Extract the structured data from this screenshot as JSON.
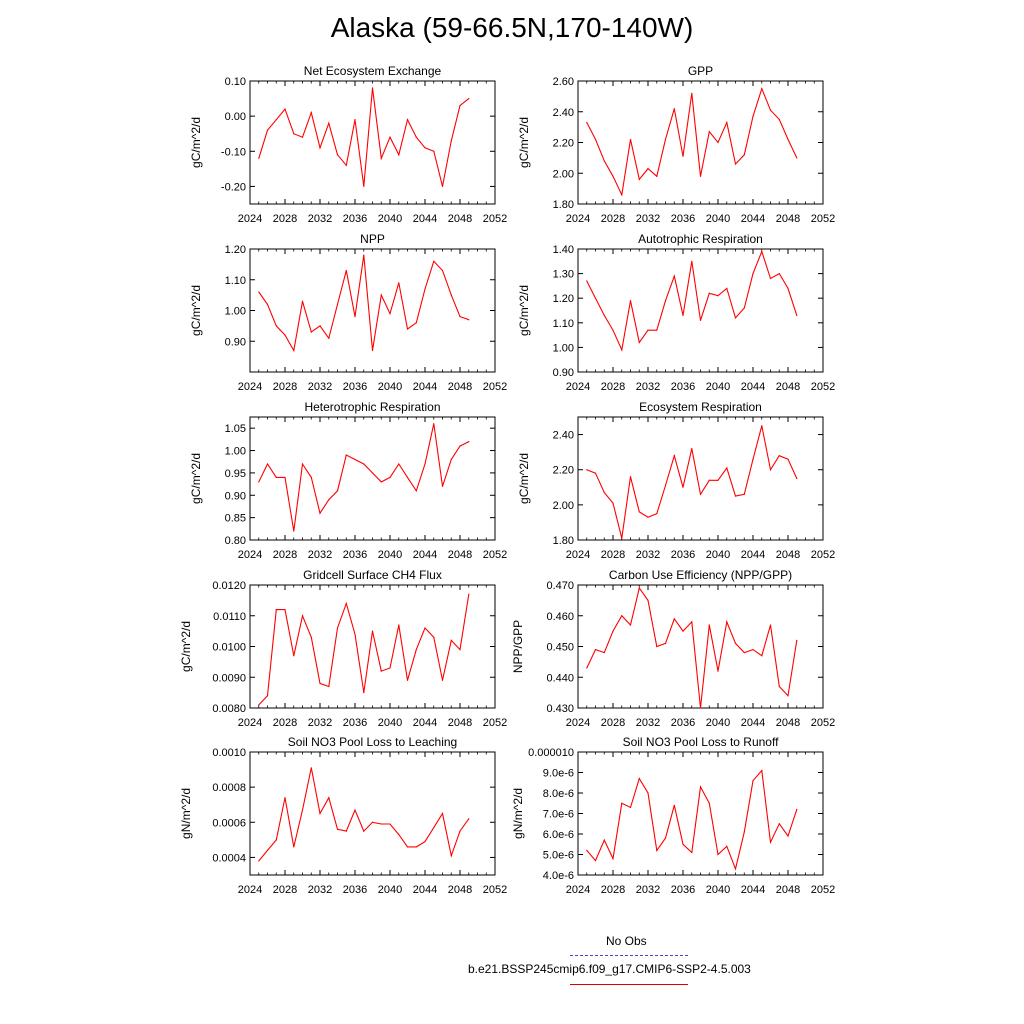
{
  "title": "Alaska (59-66.5N,170-140W)",
  "legend": {
    "obs_label": "No Obs",
    "obs_color": "#4444cc",
    "model_label": "b.e21.BSSP245cmip6.f09_g17.CMIP6-SSP2-4.5.003",
    "model_color": "#dd0000"
  },
  "chart_data": [
    {
      "type": "line",
      "title": "Net Ecosystem Exchange",
      "ylabel": "gC/m^2/d",
      "xlim": [
        2024,
        2052
      ],
      "xticks": [
        2024,
        2028,
        2032,
        2036,
        2040,
        2044,
        2048,
        2052
      ],
      "ylim": [
        -0.25,
        0.1
      ],
      "yticks": [
        -0.2,
        -0.1,
        0.0,
        0.1
      ],
      "ytick_labels": [
        "-0.20",
        "-0.10",
        "0.00",
        "0.10"
      ],
      "series": [
        {
          "color": "#ff0000",
          "x": [
            2025,
            2026,
            2027,
            2028,
            2029,
            2030,
            2031,
            2032,
            2033,
            2034,
            2035,
            2036,
            2037,
            2038,
            2039,
            2040,
            2041,
            2042,
            2043,
            2044,
            2045,
            2046,
            2047,
            2048,
            2049
          ],
          "values": [
            -0.12,
            -0.04,
            -0.01,
            0.02,
            -0.05,
            -0.06,
            0.01,
            -0.09,
            -0.02,
            -0.11,
            -0.14,
            -0.01,
            -0.2,
            0.08,
            -0.12,
            -0.06,
            -0.11,
            -0.01,
            -0.06,
            -0.09,
            -0.1,
            -0.2,
            -0.07,
            0.03,
            0.05
          ]
        }
      ]
    },
    {
      "type": "line",
      "title": "GPP",
      "ylabel": "gC/m^2/d",
      "xlim": [
        2024,
        2052
      ],
      "xticks": [
        2024,
        2028,
        2032,
        2036,
        2040,
        2044,
        2048,
        2052
      ],
      "ylim": [
        1.8,
        2.6
      ],
      "yticks": [
        1.8,
        2.0,
        2.2,
        2.4,
        2.6
      ],
      "ytick_labels": [
        "1.80",
        "2.00",
        "2.20",
        "2.40",
        "2.60"
      ],
      "series": [
        {
          "color": "#ff0000",
          "x": [
            2025,
            2026,
            2027,
            2028,
            2029,
            2030,
            2031,
            2032,
            2033,
            2034,
            2035,
            2036,
            2037,
            2038,
            2039,
            2040,
            2041,
            2042,
            2043,
            2044,
            2045,
            2046,
            2047,
            2048,
            2049
          ],
          "values": [
            2.33,
            2.22,
            2.08,
            1.98,
            1.86,
            2.22,
            1.96,
            2.03,
            1.98,
            2.22,
            2.42,
            2.11,
            2.52,
            1.98,
            2.27,
            2.2,
            2.33,
            2.06,
            2.12,
            2.37,
            2.55,
            2.41,
            2.35,
            2.22,
            2.1
          ]
        }
      ]
    },
    {
      "type": "line",
      "title": "NPP",
      "ylabel": "gC/m^2/d",
      "xlim": [
        2024,
        2052
      ],
      "xticks": [
        2024,
        2028,
        2032,
        2036,
        2040,
        2044,
        2048,
        2052
      ],
      "ylim": [
        0.8,
        1.2
      ],
      "yticks": [
        0.9,
        1.0,
        1.1,
        1.2
      ],
      "ytick_labels": [
        "0.90",
        "1.00",
        "1.10",
        "1.20"
      ],
      "series": [
        {
          "color": "#ff0000",
          "x": [
            2025,
            2026,
            2027,
            2028,
            2029,
            2030,
            2031,
            2032,
            2033,
            2034,
            2035,
            2036,
            2037,
            2038,
            2039,
            2040,
            2041,
            2042,
            2043,
            2044,
            2045,
            2046,
            2047,
            2048,
            2049
          ],
          "values": [
            1.06,
            1.02,
            0.95,
            0.92,
            0.87,
            1.03,
            0.93,
            0.95,
            0.91,
            1.02,
            1.13,
            0.98,
            1.18,
            0.87,
            1.05,
            0.99,
            1.09,
            0.94,
            0.96,
            1.07,
            1.16,
            1.13,
            1.05,
            0.98,
            0.97
          ]
        }
      ]
    },
    {
      "type": "line",
      "title": "Autotrophic Respiration",
      "ylabel": "gC/m^2/d",
      "xlim": [
        2024,
        2052
      ],
      "xticks": [
        2024,
        2028,
        2032,
        2036,
        2040,
        2044,
        2048,
        2052
      ],
      "ylim": [
        0.9,
        1.4
      ],
      "yticks": [
        0.9,
        1.0,
        1.1,
        1.2,
        1.3,
        1.4
      ],
      "ytick_labels": [
        "0.90",
        "1.00",
        "1.10",
        "1.20",
        "1.30",
        "1.40"
      ],
      "series": [
        {
          "color": "#ff0000",
          "x": [
            2025,
            2026,
            2027,
            2028,
            2029,
            2030,
            2031,
            2032,
            2033,
            2034,
            2035,
            2036,
            2037,
            2038,
            2039,
            2040,
            2041,
            2042,
            2043,
            2044,
            2045,
            2046,
            2047,
            2048,
            2049
          ],
          "values": [
            1.27,
            1.2,
            1.13,
            1.07,
            0.99,
            1.19,
            1.02,
            1.07,
            1.07,
            1.19,
            1.29,
            1.13,
            1.35,
            1.11,
            1.22,
            1.21,
            1.24,
            1.12,
            1.16,
            1.3,
            1.39,
            1.28,
            1.3,
            1.24,
            1.13
          ]
        }
      ]
    },
    {
      "type": "line",
      "title": "Heterotrophic Respiration",
      "ylabel": "gC/m^2/d",
      "xlim": [
        2024,
        2052
      ],
      "xticks": [
        2024,
        2028,
        2032,
        2036,
        2040,
        2044,
        2048,
        2052
      ],
      "ylim": [
        0.8,
        1.075
      ],
      "yticks": [
        0.8,
        0.85,
        0.9,
        0.95,
        1.0,
        1.05
      ],
      "ytick_labels": [
        "0.80",
        "0.85",
        "0.90",
        "0.95",
        "1.00",
        "1.05"
      ],
      "series": [
        {
          "color": "#ff0000",
          "x": [
            2025,
            2026,
            2027,
            2028,
            2029,
            2030,
            2031,
            2032,
            2033,
            2034,
            2035,
            2036,
            2037,
            2038,
            2039,
            2040,
            2041,
            2042,
            2043,
            2044,
            2045,
            2046,
            2047,
            2048,
            2049
          ],
          "values": [
            0.93,
            0.97,
            0.94,
            0.94,
            0.82,
            0.97,
            0.94,
            0.86,
            0.89,
            0.91,
            0.99,
            0.98,
            0.97,
            0.95,
            0.93,
            0.94,
            0.97,
            0.94,
            0.91,
            0.97,
            1.06,
            0.92,
            0.98,
            1.01,
            1.02
          ]
        }
      ]
    },
    {
      "type": "line",
      "title": "Ecosystem Respiration",
      "ylabel": "gC/m^2/d",
      "xlim": [
        2024,
        2052
      ],
      "xticks": [
        2024,
        2028,
        2032,
        2036,
        2040,
        2044,
        2048,
        2052
      ],
      "ylim": [
        1.8,
        2.5
      ],
      "yticks": [
        1.8,
        2.0,
        2.2,
        2.4
      ],
      "ytick_labels": [
        "1.80",
        "2.00",
        "2.20",
        "2.40"
      ],
      "series": [
        {
          "color": "#ff0000",
          "x": [
            2025,
            2026,
            2027,
            2028,
            2029,
            2030,
            2031,
            2032,
            2033,
            2034,
            2035,
            2036,
            2037,
            2038,
            2039,
            2040,
            2041,
            2042,
            2043,
            2044,
            2045,
            2046,
            2047,
            2048,
            2049
          ],
          "values": [
            2.2,
            2.18,
            2.07,
            2.01,
            1.81,
            2.16,
            1.96,
            1.93,
            1.95,
            2.11,
            2.28,
            2.1,
            2.32,
            2.06,
            2.14,
            2.14,
            2.21,
            2.05,
            2.06,
            2.26,
            2.45,
            2.2,
            2.28,
            2.26,
            2.15
          ]
        }
      ]
    },
    {
      "type": "line",
      "title": "Gridcell Surface CH4 Flux",
      "ylabel": "gC/m^2/d",
      "xlim": [
        2024,
        2052
      ],
      "xticks": [
        2024,
        2028,
        2032,
        2036,
        2040,
        2044,
        2048,
        2052
      ],
      "ylim": [
        0.008,
        0.012
      ],
      "yticks": [
        0.008,
        0.009,
        0.01,
        0.011,
        0.012
      ],
      "ytick_labels": [
        "0.0080",
        "0.0090",
        "0.0100",
        "0.0110",
        "0.0120"
      ],
      "series": [
        {
          "color": "#ff0000",
          "x": [
            2025,
            2026,
            2027,
            2028,
            2029,
            2030,
            2031,
            2032,
            2033,
            2034,
            2035,
            2036,
            2037,
            2038,
            2039,
            2040,
            2041,
            2042,
            2043,
            2044,
            2045,
            2046,
            2047,
            2048,
            2049
          ],
          "values": [
            0.0081,
            0.0084,
            0.0112,
            0.0112,
            0.0097,
            0.011,
            0.0103,
            0.0088,
            0.0087,
            0.0106,
            0.0114,
            0.0104,
            0.0085,
            0.0105,
            0.0092,
            0.0093,
            0.0107,
            0.0089,
            0.0099,
            0.0106,
            0.0103,
            0.0089,
            0.0102,
            0.0099,
            0.0117
          ]
        }
      ]
    },
    {
      "type": "line",
      "title": "Carbon Use Efficiency (NPP/GPP)",
      "ylabel": "NPP/GPP",
      "xlim": [
        2024,
        2052
      ],
      "xticks": [
        2024,
        2028,
        2032,
        2036,
        2040,
        2044,
        2048,
        2052
      ],
      "ylim": [
        0.43,
        0.47
      ],
      "yticks": [
        0.43,
        0.44,
        0.45,
        0.46,
        0.47
      ],
      "ytick_labels": [
        "0.430",
        "0.440",
        "0.450",
        "0.460",
        "0.470"
      ],
      "series": [
        {
          "color": "#ff0000",
          "x": [
            2025,
            2026,
            2027,
            2028,
            2029,
            2030,
            2031,
            2032,
            2033,
            2034,
            2035,
            2036,
            2037,
            2038,
            2039,
            2040,
            2041,
            2042,
            2043,
            2044,
            2045,
            2046,
            2047,
            2048,
            2049
          ],
          "values": [
            0.443,
            0.449,
            0.448,
            0.455,
            0.46,
            0.457,
            0.469,
            0.465,
            0.45,
            0.451,
            0.459,
            0.455,
            0.458,
            0.43,
            0.457,
            0.442,
            0.458,
            0.451,
            0.448,
            0.449,
            0.447,
            0.457,
            0.437,
            0.434,
            0.452
          ]
        }
      ]
    },
    {
      "type": "line",
      "title": "Soil NO3 Pool Loss to Leaching",
      "ylabel": "gN/m^2/d",
      "xlim": [
        2024,
        2052
      ],
      "xticks": [
        2024,
        2028,
        2032,
        2036,
        2040,
        2044,
        2048,
        2052
      ],
      "ylim": [
        0.0003,
        0.001
      ],
      "yticks": [
        0.0004,
        0.0006,
        0.0008,
        0.001
      ],
      "ytick_labels": [
        "0.0004",
        "0.0006",
        "0.0008",
        "0.0010"
      ],
      "series": [
        {
          "color": "#ff0000",
          "x": [
            2025,
            2026,
            2027,
            2028,
            2029,
            2030,
            2031,
            2032,
            2033,
            2034,
            2035,
            2036,
            2037,
            2038,
            2039,
            2040,
            2041,
            2042,
            2043,
            2044,
            2045,
            2046,
            2047,
            2048,
            2049
          ],
          "values": [
            0.00038,
            0.00044,
            0.0005,
            0.00074,
            0.00046,
            0.00067,
            0.00091,
            0.00065,
            0.00074,
            0.00056,
            0.00055,
            0.00067,
            0.00055,
            0.0006,
            0.00059,
            0.00059,
            0.00053,
            0.00046,
            0.00046,
            0.00049,
            0.00057,
            0.00065,
            0.00041,
            0.00055,
            0.00062
          ]
        }
      ]
    },
    {
      "type": "line",
      "title": "Soil NO3 Pool Loss to Runoff",
      "ylabel": "gN/m^2/d",
      "xlim": [
        2024,
        2052
      ],
      "xticks": [
        2024,
        2028,
        2032,
        2036,
        2040,
        2044,
        2048,
        2052
      ],
      "ylim": [
        4e-06,
        1e-05
      ],
      "yticks": [
        4e-06,
        5e-06,
        6e-06,
        7e-06,
        8e-06,
        9e-06,
        1e-05
      ],
      "ytick_labels": [
        "4.0e-6",
        "5.0e-6",
        "6.0e-6",
        "7.0e-6",
        "8.0e-6",
        "9.0e-6",
        "0.000010"
      ],
      "series": [
        {
          "color": "#ff0000",
          "x": [
            2025,
            2026,
            2027,
            2028,
            2029,
            2030,
            2031,
            2032,
            2033,
            2034,
            2035,
            2036,
            2037,
            2038,
            2039,
            2040,
            2041,
            2042,
            2043,
            2044,
            2045,
            2046,
            2047,
            2048,
            2049
          ],
          "values": [
            5.2e-06,
            4.7e-06,
            5.7e-06,
            4.8e-06,
            7.5e-06,
            7.3e-06,
            8.7e-06,
            8e-06,
            5.2e-06,
            5.8e-06,
            7.4e-06,
            5.5e-06,
            5.1e-06,
            8.3e-06,
            7.5e-06,
            5e-06,
            5.4e-06,
            4.3e-06,
            6.1e-06,
            8.6e-06,
            9.1e-06,
            5.6e-06,
            6.5e-06,
            5.9e-06,
            7.2e-06
          ]
        }
      ]
    }
  ]
}
